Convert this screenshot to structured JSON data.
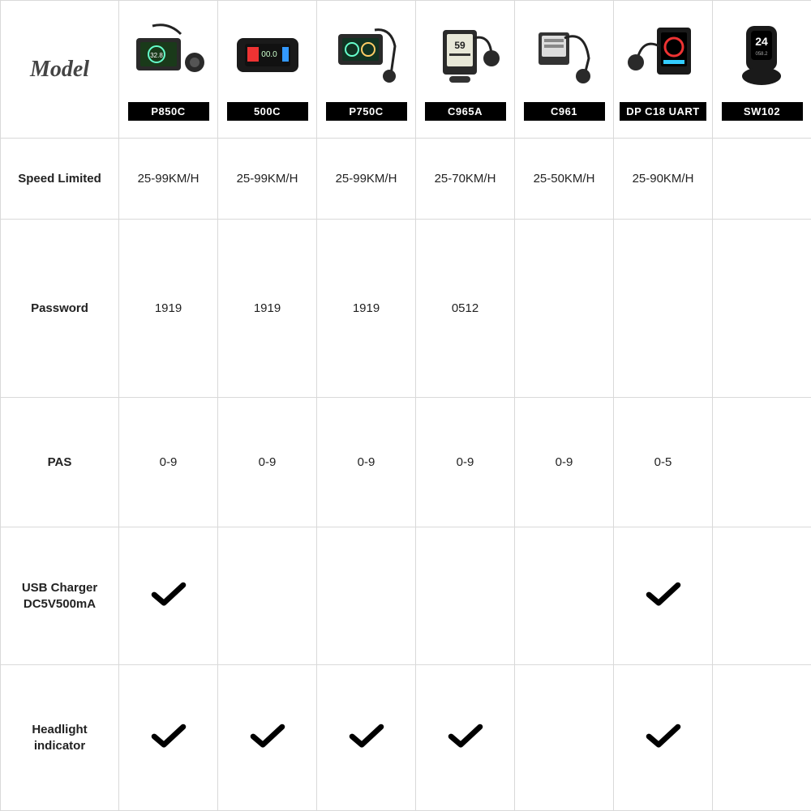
{
  "table": {
    "type": "table",
    "header_label": "Model",
    "columns": [
      {
        "id": "p850c",
        "label": "P850C"
      },
      {
        "id": "500c",
        "label": "500C"
      },
      {
        "id": "p750c",
        "label": "P750C"
      },
      {
        "id": "c965a",
        "label": "C965A"
      },
      {
        "id": "c961",
        "label": "C961"
      },
      {
        "id": "dpc18",
        "label": "DP C18 UART"
      },
      {
        "id": "sw102",
        "label": "SW102"
      }
    ],
    "rows": [
      {
        "id": "speed",
        "label": "Speed Limited",
        "values": [
          "25-99KM/H",
          "25-99KM/H",
          "25-99KM/H",
          "25-70KM/H",
          "25-50KM/H",
          "25-90KM/H",
          ""
        ]
      },
      {
        "id": "password",
        "label": "Password",
        "values": [
          "1919",
          "1919",
          "1919",
          "0512",
          "",
          "",
          ""
        ]
      },
      {
        "id": "pas",
        "label": "PAS",
        "values": [
          "0-9",
          "0-9",
          "0-9",
          "0-9",
          "0-9",
          "0-5",
          ""
        ]
      },
      {
        "id": "usb",
        "label": "USB Charger\nDC5V500mA",
        "values": [
          "check",
          "",
          "",
          "",
          "",
          "check",
          ""
        ]
      },
      {
        "id": "headlight",
        "label": "Headlight\nindicator",
        "values": [
          "check",
          "check",
          "check",
          "check",
          "",
          "check",
          ""
        ]
      }
    ],
    "styling": {
      "badge_bg": "#000000",
      "badge_fg": "#ffffff",
      "border_color": "#d9d9d9",
      "text_color": "#222222",
      "header_fontsize": 28,
      "rowlabel_fontsize": 15,
      "cell_fontsize": 15,
      "check_color": "#000000"
    }
  }
}
